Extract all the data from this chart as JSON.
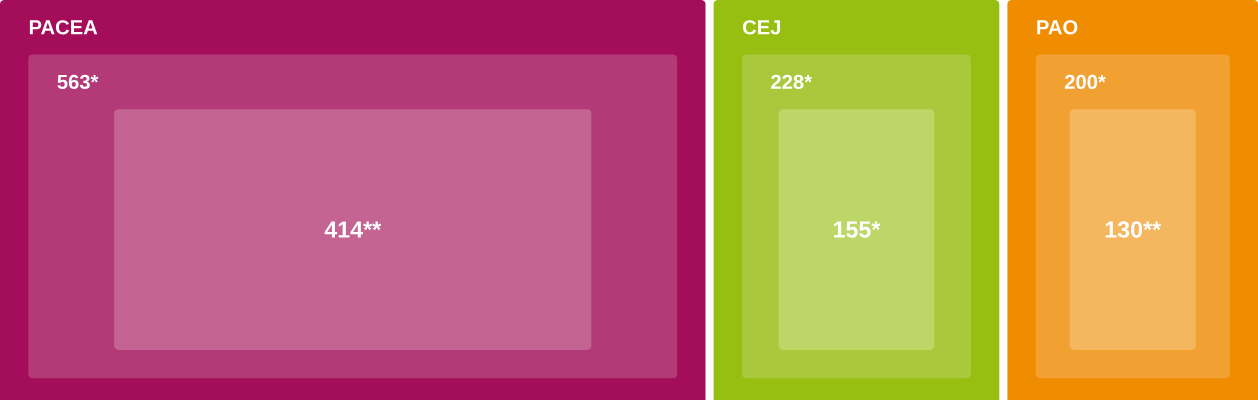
{
  "chart_data": {
    "type": "other",
    "categories": [
      "PACEA",
      "CEJ",
      "PAO"
    ],
    "colors": [
      "#a30d59",
      "#97bf12",
      "#f08c00"
    ],
    "series": [
      {
        "values": [
          563,
          228,
          200
        ],
        "value_labels": [
          "563*",
          "228*",
          "200*"
        ],
        "colors": [
          "#b43a77",
          "#a9c83c",
          "#f1a032"
        ]
      },
      {
        "values": [
          414,
          155,
          130
        ],
        "value_labels": [
          "414**",
          "155*",
          "130**"
        ],
        "colors": [
          "#c36493",
          "#bcd667",
          "#f4b65f"
        ]
      }
    ]
  }
}
